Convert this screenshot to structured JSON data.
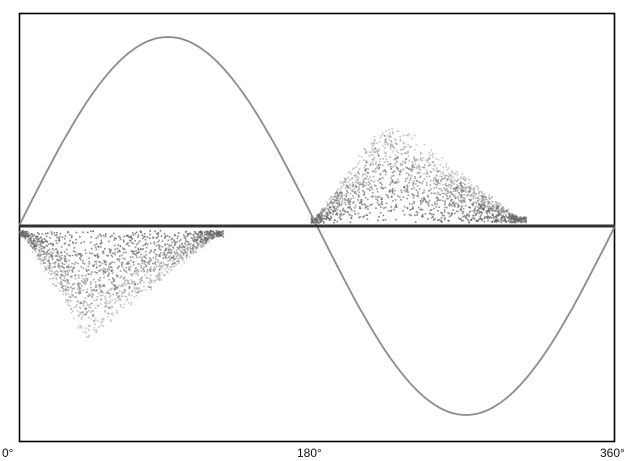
{
  "chart_data": {
    "type": "scatter",
    "x_ticks": [
      "0°",
      "180°",
      "360°"
    ],
    "xlim": [
      0,
      360
    ],
    "ylim": [
      -1,
      1
    ],
    "grid": false,
    "reference_curve": {
      "shape": "sine",
      "amplitude": 1,
      "period_deg": 360,
      "color": "#8c8c8c"
    },
    "zero_line_color": "#333333",
    "discharge_clusters": [
      {
        "polarity": "positive",
        "phase_start": 176,
        "phase_end": 306,
        "peak_phase": 222,
        "peak_amplitude": 0.51,
        "color": "#666666"
      },
      {
        "polarity": "negative",
        "phase_start": 0,
        "phase_end": 123,
        "peak_phase": 41,
        "peak_amplitude": -0.53,
        "color": "#666666"
      }
    ]
  }
}
